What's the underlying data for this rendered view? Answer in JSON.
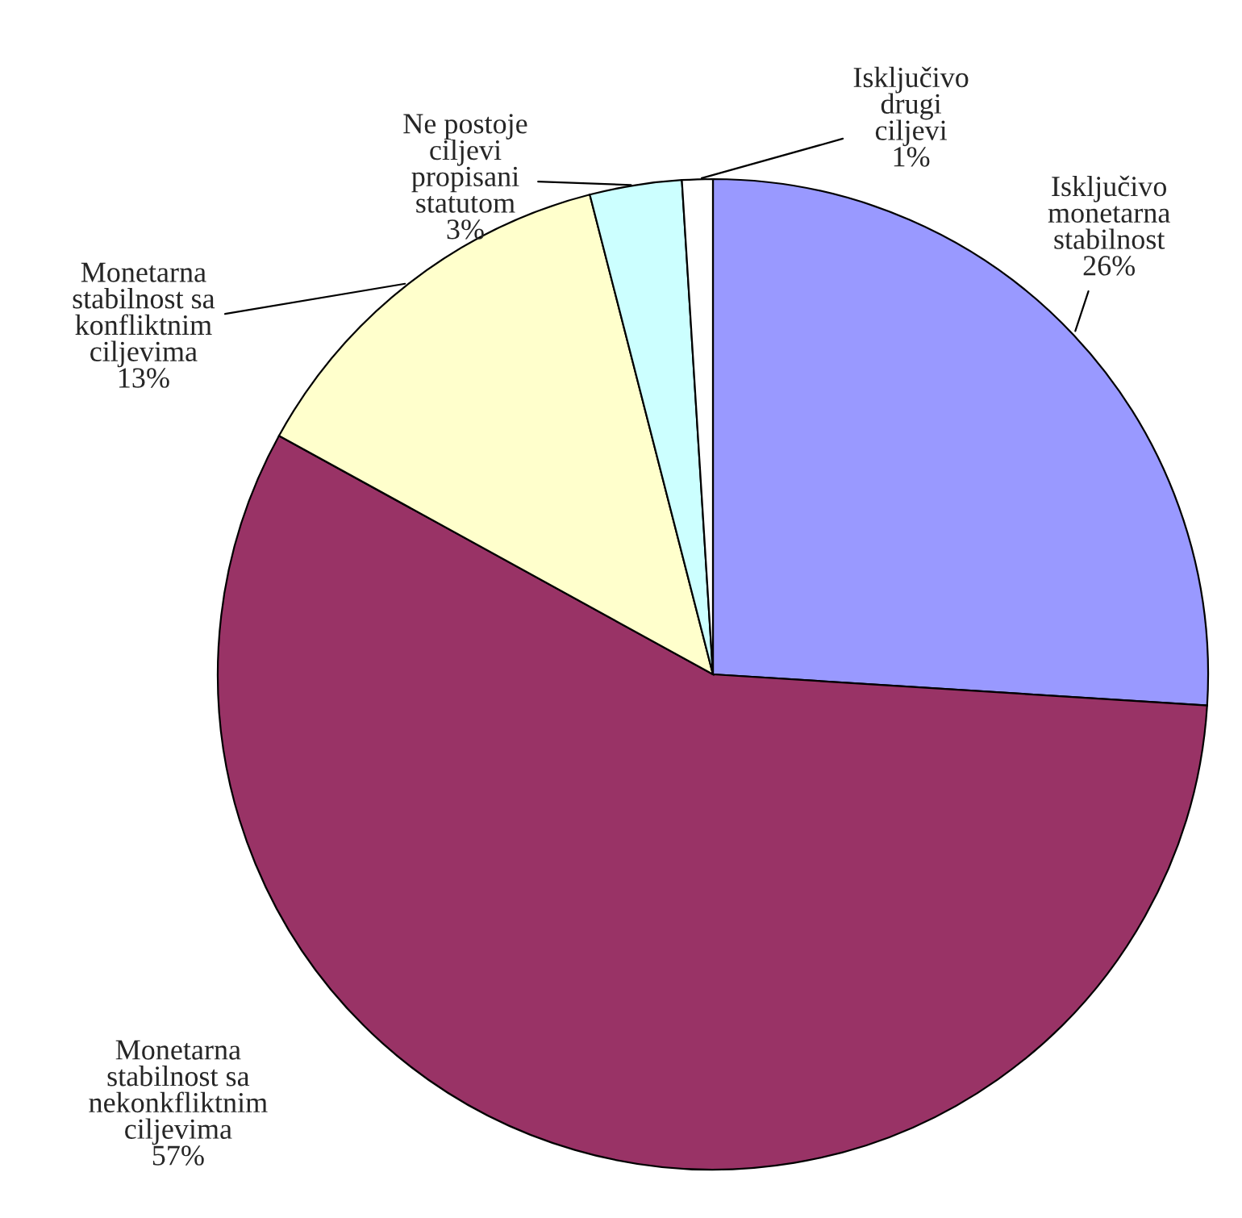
{
  "chart_data": {
    "type": "pie",
    "categories": [
      "Isključivo\nmonetarna\nstabilnost",
      "Monetarna\nstabilnost sa\nnekonkfliktnim\nciljevima",
      "Monetarna\nstabilnost sa\nkonfliktnim\nciljevima",
      "Ne postoje\nciljevi\npropisani\nstatutom",
      "Isključivo\ndrugi\nciljevi"
    ],
    "values": [
      26,
      57,
      13,
      3,
      1
    ],
    "value_labels": [
      "26%",
      "57%",
      "13%",
      "3%",
      "1%"
    ],
    "colors": [
      "#9999ff",
      "#993366",
      "#ffffcc",
      "#ccffff",
      "#ffffff"
    ]
  }
}
